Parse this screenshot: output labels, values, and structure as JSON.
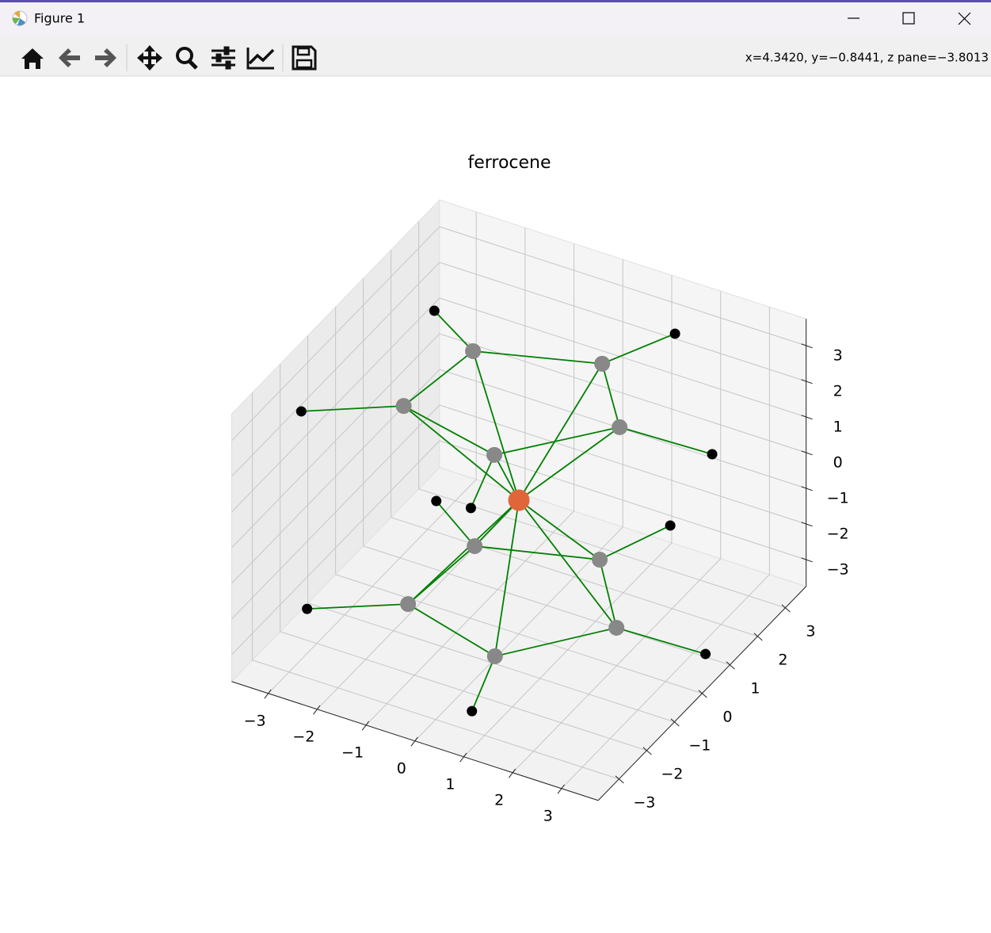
{
  "window": {
    "title": "Figure 1"
  },
  "toolbar": {
    "status": "x=4.3420, y=−0.8441, z pane=−3.8013"
  },
  "chart_data": {
    "type": "scatter3d",
    "title": "ferrocene",
    "xlim": [
      -3.75,
      3.75
    ],
    "ylim": [
      -3.75,
      3.75
    ],
    "zlim": [
      -3.75,
      3.75
    ],
    "xticks": [
      {
        "value": -3,
        "label": "−3"
      },
      {
        "value": -2,
        "label": "−2"
      },
      {
        "value": -1,
        "label": "−1"
      },
      0,
      1,
      2,
      3
    ],
    "yticks": [
      {
        "value": -3,
        "label": "−3"
      },
      {
        "value": -2,
        "label": "−2"
      },
      {
        "value": -1,
        "label": "−1"
      },
      0,
      1,
      2,
      3
    ],
    "zticks": [
      {
        "value": -3,
        "label": "−3"
      },
      {
        "value": -2,
        "label": "−2"
      },
      {
        "value": -1,
        "label": "−1"
      },
      0,
      1,
      2,
      3
    ],
    "grid": true,
    "bond_color": "#008000",
    "series": [
      {
        "color": "#e0663a",
        "x": [
          0
        ],
        "y": [
          0
        ],
        "z": [
          0
        ]
      },
      {
        "color": "#888888",
        "x": [
          -2.05,
          0.15,
          1.38,
          -0.15,
          -2.3,
          -0.91,
          1.24,
          2.53,
          1.07,
          -1.07
        ],
        "y": [
          1.96,
          2.74,
          1.2,
          -0.62,
          -0.1,
          0.01,
          0.73,
          -0.94,
          -2.75,
          -2.11
        ],
        "z": [
          1.7,
          1.7,
          1.7,
          1.7,
          1.7,
          -1.7,
          -1.7,
          -1.7,
          -1.7,
          -1.7
        ]
      },
      {
        "color": "#000000",
        "x": [
          -2.83,
          1.26,
          3.66,
          -3.38,
          0.72,
          -2.62,
          1.39,
          3.88,
          1.11,
          -3.0
        ],
        "y": [
          1.94,
          3.41,
          0.52,
          -1.89,
          -3.0,
          1.64,
          3.01,
          -0.11,
          -3.65,
          -2.35
        ],
        "z": [
          2.5,
          2.5,
          2.5,
          2.5,
          2.5,
          -2.5,
          -2.5,
          -2.5,
          -2.5,
          -2.5
        ]
      }
    ],
    "bonds": [
      [
        [
          0,
          0
        ],
        [
          1,
          0
        ]
      ],
      [
        [
          0,
          0
        ],
        [
          1,
          1
        ]
      ],
      [
        [
          0,
          0
        ],
        [
          1,
          2
        ]
      ],
      [
        [
          0,
          0
        ],
        [
          1,
          3
        ]
      ],
      [
        [
          0,
          0
        ],
        [
          1,
          4
        ]
      ],
      [
        [
          0,
          0
        ],
        [
          1,
          5
        ]
      ],
      [
        [
          0,
          0
        ],
        [
          1,
          6
        ]
      ],
      [
        [
          0,
          0
        ],
        [
          1,
          7
        ]
      ],
      [
        [
          0,
          0
        ],
        [
          1,
          8
        ]
      ],
      [
        [
          0,
          0
        ],
        [
          1,
          9
        ]
      ],
      [
        [
          1,
          0
        ],
        [
          1,
          1
        ]
      ],
      [
        [
          1,
          1
        ],
        [
          1,
          2
        ]
      ],
      [
        [
          1,
          2
        ],
        [
          1,
          3
        ]
      ],
      [
        [
          1,
          3
        ],
        [
          1,
          4
        ]
      ],
      [
        [
          1,
          4
        ],
        [
          1,
          0
        ]
      ],
      [
        [
          1,
          5
        ],
        [
          1,
          6
        ]
      ],
      [
        [
          1,
          6
        ],
        [
          1,
          7
        ]
      ],
      [
        [
          1,
          7
        ],
        [
          1,
          8
        ]
      ],
      [
        [
          1,
          8
        ],
        [
          1,
          9
        ]
      ],
      [
        [
          1,
          9
        ],
        [
          1,
          5
        ]
      ],
      [
        [
          1,
          0
        ],
        [
          2,
          0
        ]
      ],
      [
        [
          1,
          1
        ],
        [
          2,
          1
        ]
      ],
      [
        [
          1,
          2
        ],
        [
          2,
          2
        ]
      ],
      [
        [
          1,
          4
        ],
        [
          2,
          3
        ]
      ],
      [
        [
          1,
          3
        ],
        [
          2,
          4
        ]
      ],
      [
        [
          1,
          5
        ],
        [
          2,
          5
        ]
      ],
      [
        [
          1,
          6
        ],
        [
          2,
          6
        ]
      ],
      [
        [
          1,
          7
        ],
        [
          2,
          7
        ]
      ],
      [
        [
          1,
          8
        ],
        [
          2,
          8
        ]
      ],
      [
        [
          1,
          9
        ],
        [
          2,
          9
        ]
      ]
    ]
  }
}
